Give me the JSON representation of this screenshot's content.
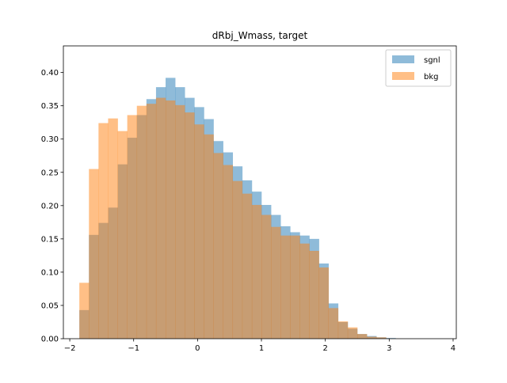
{
  "chart_data": {
    "type": "bar",
    "title": "dRbj_Wmass, target",
    "xlabel": "",
    "ylabel": "",
    "xlim": [
      -2.1,
      4.05
    ],
    "ylim": [
      0.0,
      0.44
    ],
    "x_ticks": [
      "−2",
      "−1",
      "0",
      "1",
      "2",
      "3",
      "4"
    ],
    "y_ticks": [
      "0.00",
      "0.05",
      "0.10",
      "0.15",
      "0.20",
      "0.25",
      "0.30",
      "0.35",
      "0.40"
    ],
    "x_tick_values": [
      -2,
      -1,
      0,
      1,
      2,
      3,
      4
    ],
    "y_tick_values": [
      0,
      0.05,
      0.1,
      0.15,
      0.2,
      0.25,
      0.3,
      0.35,
      0.4
    ],
    "bin_edges": [
      -1.85,
      -1.7,
      -1.55,
      -1.4,
      -1.25,
      -1.1,
      -0.95,
      -0.8,
      -0.65,
      -0.5,
      -0.35,
      -0.2,
      -0.05,
      0.1,
      0.25,
      0.4,
      0.55,
      0.7,
      0.85,
      1.0,
      1.15,
      1.3,
      1.45,
      1.6,
      1.75,
      1.9,
      2.05,
      2.2,
      2.35,
      2.5,
      2.65,
      2.8,
      2.95,
      3.1,
      3.25,
      3.4,
      3.55,
      3.7,
      3.85
    ],
    "series": [
      {
        "name": "sgnl",
        "color": "#1f77b4",
        "alpha": 0.5,
        "values": [
          0.043,
          0.156,
          0.174,
          0.197,
          0.262,
          0.302,
          0.336,
          0.36,
          0.378,
          0.392,
          0.378,
          0.362,
          0.348,
          0.33,
          0.297,
          0.28,
          0.259,
          0.238,
          0.221,
          0.201,
          0.186,
          0.169,
          0.16,
          0.155,
          0.15,
          0.113,
          0.053,
          0.025,
          0.015,
          0.007,
          0.004,
          0.002,
          0.001,
          0.0,
          0.0,
          0.0,
          0.0,
          0.0
        ]
      },
      {
        "name": "bkg",
        "color": "#ff7f0e",
        "alpha": 0.5,
        "values": [
          0.084,
          0.255,
          0.324,
          0.331,
          0.312,
          0.336,
          0.35,
          0.353,
          0.362,
          0.358,
          0.351,
          0.34,
          0.322,
          0.307,
          0.279,
          0.261,
          0.237,
          0.218,
          0.201,
          0.186,
          0.168,
          0.155,
          0.155,
          0.143,
          0.132,
          0.107,
          0.046,
          0.026,
          0.017,
          0.007,
          0.003,
          0.002,
          0.0,
          0.0,
          0.0,
          0.0,
          0.0,
          0.0
        ]
      }
    ],
    "legend_position": "top-right",
    "grid": false
  }
}
